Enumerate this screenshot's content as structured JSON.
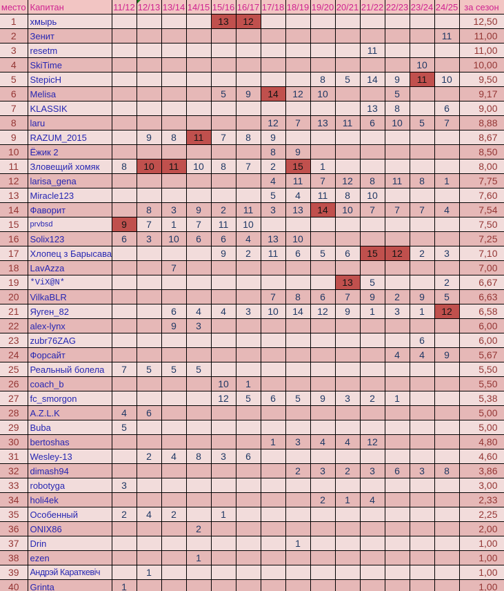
{
  "colors": {
    "header_bg": "#f2c5c3",
    "header_text": "#cf2490",
    "row_odd_bg": "#f2dcdb",
    "row_even_bg": "#e6b8b7",
    "highlight_cell_bg": "#c0504d",
    "highlight_cell_text": "#141414",
    "place_text": "#943634",
    "captain_text": "#2626b2",
    "value_text": "#1f3864",
    "avg_text": "#943634",
    "grid_border": "#000000",
    "note_marker": "#1e7e1e"
  },
  "table": {
    "columns": [
      "место",
      "Капитан",
      "11/12",
      "12/13",
      "13/14",
      "14/15",
      "15/16",
      "16/17",
      "17/18",
      "18/19",
      "19/20",
      "20/21",
      "21/22",
      "22/23",
      "23/24",
      "24/25",
      "за сезон"
    ],
    "note_marker_column": "12/13",
    "rows": [
      {
        "place": "1",
        "captain": "хмырь",
        "cells": [
          "",
          "",
          "",
          "",
          "13",
          "12",
          "",
          "",
          "",
          "",
          "",
          "",
          "",
          ""
        ],
        "hl": [
          4,
          5
        ],
        "avg": "12,50"
      },
      {
        "place": "2",
        "captain": "Зенит",
        "cells": [
          "",
          "",
          "",
          "",
          "",
          "",
          "",
          "",
          "",
          "",
          "",
          "",
          "",
          "11"
        ],
        "hl": [],
        "avg": "11,00"
      },
      {
        "place": "3",
        "captain": "resetm",
        "cells": [
          "",
          "",
          "",
          "",
          "",
          "",
          "",
          "",
          "",
          "",
          "11",
          "",
          "",
          ""
        ],
        "hl": [],
        "avg": "11,00"
      },
      {
        "place": "4",
        "captain": "SkiTime",
        "cells": [
          "",
          "",
          "",
          "",
          "",
          "",
          "",
          "",
          "",
          "",
          "",
          "",
          "10",
          ""
        ],
        "hl": [],
        "avg": "10,00"
      },
      {
        "place": "5",
        "captain": "StepicH",
        "cells": [
          "",
          "",
          "",
          "",
          "",
          "",
          "",
          "",
          "8",
          "5",
          "14",
          "9",
          "11",
          "10"
        ],
        "hl": [
          12
        ],
        "avg": "9,50"
      },
      {
        "place": "6",
        "captain": "Melisa",
        "cells": [
          "",
          "",
          "",
          "",
          "5",
          "9",
          "14",
          "12",
          "10",
          "",
          "",
          "5",
          "",
          ""
        ],
        "hl": [
          6
        ],
        "avg": "9,17"
      },
      {
        "place": "7",
        "captain": "KLASSIK",
        "cells": [
          "",
          "",
          "",
          "",
          "",
          "",
          "",
          "",
          "",
          "",
          "13",
          "8",
          "",
          "6"
        ],
        "hl": [],
        "avg": "9,00"
      },
      {
        "place": "8",
        "captain": "laru",
        "cells": [
          "",
          "",
          "",
          "",
          "",
          "",
          "12",
          "7",
          "13",
          "11",
          "6",
          "10",
          "5",
          "7"
        ],
        "hl": [],
        "avg": "8,88"
      },
      {
        "place": "9",
        "captain": "RAZUM_2015",
        "cells": [
          "",
          "9",
          "8",
          "11",
          "7",
          "8",
          "9",
          "",
          "",
          "",
          "",
          "",
          "",
          ""
        ],
        "hl": [
          3
        ],
        "avg": "8,67"
      },
      {
        "place": "10",
        "captain": "Ёжик 2",
        "cells": [
          "",
          "",
          "",
          "",
          "",
          "",
          "8",
          "9",
          "",
          "",
          "",
          "",
          "",
          ""
        ],
        "hl": [],
        "avg": "8,50"
      },
      {
        "place": "11",
        "captain": "Зловещий хомяк",
        "cells": [
          "8",
          "10",
          "11",
          "10",
          "8",
          "7",
          "2",
          "15",
          "1",
          "",
          "",
          "",
          "",
          ""
        ],
        "hl": [
          1,
          2,
          7
        ],
        "avg": "8,00"
      },
      {
        "place": "12",
        "captain": "larisa_gena",
        "cells": [
          "",
          "",
          "",
          "",
          "",
          "",
          "4",
          "11",
          "7",
          "12",
          "8",
          "11",
          "8",
          "1"
        ],
        "hl": [],
        "avg": "7,75"
      },
      {
        "place": "13",
        "captain": "Miracle123",
        "cells": [
          "",
          "",
          "",
          "",
          "",
          "",
          "5",
          "4",
          "11",
          "8",
          "10",
          "",
          "",
          ""
        ],
        "hl": [],
        "avg": "7,60"
      },
      {
        "place": "14",
        "captain": "Фаворит",
        "cells": [
          "",
          "8",
          "3",
          "9",
          "2",
          "11",
          "3",
          "13",
          "14",
          "10",
          "7",
          "7",
          "7",
          "4"
        ],
        "hl": [
          8
        ],
        "avg": "7,54"
      },
      {
        "place": "15",
        "captain": "prvbsd",
        "cells": [
          "9",
          "7",
          "1",
          "7",
          "11",
          "10",
          "",
          "",
          "",
          "",
          "",
          "",
          "",
          ""
        ],
        "hl": [
          0
        ],
        "avg": "7,50",
        "captain_style": "small"
      },
      {
        "place": "16",
        "captain": "Solix123",
        "cells": [
          "6",
          "3",
          "10",
          "6",
          "6",
          "4",
          "13",
          "10",
          "",
          "",
          "",
          "",
          "",
          ""
        ],
        "hl": [],
        "avg": "7,25"
      },
      {
        "place": "17",
        "captain": "Хлопец з Барысава",
        "cells": [
          "",
          "",
          "",
          "",
          "9",
          "2",
          "11",
          "6",
          "5",
          "6",
          "15",
          "12",
          "2",
          "3"
        ],
        "hl": [
          10,
          11
        ],
        "avg": "7,10"
      },
      {
        "place": "18",
        "captain": "LavAzza",
        "cells": [
          "",
          "",
          "7",
          "",
          "",
          "",
          "",
          "",
          "",
          "",
          "",
          "",
          "",
          ""
        ],
        "hl": [],
        "avg": "7,00"
      },
      {
        "place": "19",
        "captain": "*ViX@N*",
        "cells": [
          "",
          "",
          "",
          "",
          "",
          "",
          "",
          "",
          "",
          "13",
          "5",
          "",
          "",
          "2"
        ],
        "hl": [
          9
        ],
        "avg": "6,67",
        "captain_style": "mono"
      },
      {
        "place": "20",
        "captain": "VilkaBLR",
        "cells": [
          "",
          "",
          "",
          "",
          "",
          "",
          "7",
          "8",
          "6",
          "7",
          "9",
          "2",
          "9",
          "5"
        ],
        "hl": [],
        "avg": "6,63"
      },
      {
        "place": "21",
        "captain": "Яуген_82",
        "cells": [
          "",
          "",
          "6",
          "4",
          "4",
          "3",
          "10",
          "14",
          "12",
          "9",
          "1",
          "3",
          "1",
          "12"
        ],
        "hl": [
          13
        ],
        "avg": "6,58"
      },
      {
        "place": "22",
        "captain": "alex-lynx",
        "cells": [
          "",
          "",
          "9",
          "3",
          "",
          "",
          "",
          "",
          "",
          "",
          "",
          "",
          "",
          ""
        ],
        "hl": [],
        "avg": "6,00"
      },
      {
        "place": "23",
        "captain": "zubr76ZAG",
        "cells": [
          "",
          "",
          "",
          "",
          "",
          "",
          "",
          "",
          "",
          "",
          "",
          "",
          "6",
          ""
        ],
        "hl": [],
        "avg": "6,00"
      },
      {
        "place": "24",
        "captain": "Форсайт",
        "cells": [
          "",
          "",
          "",
          "",
          "",
          "",
          "",
          "",
          "",
          "",
          "",
          "4",
          "4",
          "9"
        ],
        "hl": [],
        "avg": "5,67"
      },
      {
        "place": "25",
        "captain": "Реальный болела",
        "cells": [
          "7",
          "5",
          "5",
          "5",
          "",
          "",
          "",
          "",
          "",
          "",
          "",
          "",
          "",
          ""
        ],
        "hl": [],
        "avg": "5,50"
      },
      {
        "place": "26",
        "captain": "coach_b",
        "cells": [
          "",
          "",
          "",
          "",
          "10",
          "1",
          "",
          "",
          "",
          "",
          "",
          "",
          "",
          ""
        ],
        "hl": [],
        "avg": "5,50"
      },
      {
        "place": "27",
        "captain": "fc_smorgon",
        "cells": [
          "",
          "",
          "",
          "",
          "12",
          "5",
          "6",
          "5",
          "9",
          "3",
          "2",
          "1",
          "",
          ""
        ],
        "hl": [],
        "avg": "5,38"
      },
      {
        "place": "28",
        "captain": "A.Z.L.K",
        "cells": [
          "4",
          "6",
          "",
          "",
          "",
          "",
          "",
          "",
          "",
          "",
          "",
          "",
          "",
          ""
        ],
        "hl": [],
        "avg": "5,00"
      },
      {
        "place": "29",
        "captain": "Buba",
        "cells": [
          "5",
          "",
          "",
          "",
          "",
          "",
          "",
          "",
          "",
          "",
          "",
          "",
          "",
          ""
        ],
        "hl": [],
        "avg": "5,00"
      },
      {
        "place": "30",
        "captain": "bertoshas",
        "cells": [
          "",
          "",
          "",
          "",
          "",
          "",
          "1",
          "3",
          "4",
          "4",
          "12",
          "",
          "",
          ""
        ],
        "hl": [],
        "avg": "4,80"
      },
      {
        "place": "31",
        "captain": "Wesley-13",
        "cells": [
          "",
          "2",
          "4",
          "8",
          "3",
          "6",
          "",
          "",
          "",
          "",
          "",
          "",
          "",
          ""
        ],
        "hl": [],
        "avg": "4,60"
      },
      {
        "place": "32",
        "captain": "dimash94",
        "cells": [
          "",
          "",
          "",
          "",
          "",
          "",
          "",
          "2",
          "3",
          "2",
          "3",
          "6",
          "3",
          "8"
        ],
        "hl": [],
        "avg": "3,86"
      },
      {
        "place": "33",
        "captain": "robotyga",
        "cells": [
          "3",
          "",
          "",
          "",
          "",
          "",
          "",
          "",
          "",
          "",
          "",
          "",
          "",
          ""
        ],
        "hl": [],
        "avg": "3,00"
      },
      {
        "place": "34",
        "captain": "holi4ek",
        "cells": [
          "",
          "",
          "",
          "",
          "",
          "",
          "",
          "",
          "2",
          "1",
          "4",
          "",
          "",
          ""
        ],
        "hl": [],
        "avg": "2,33"
      },
      {
        "place": "35",
        "captain": "Особенный",
        "cells": [
          "2",
          "4",
          "2",
          "",
          "1",
          "",
          "",
          "",
          "",
          "",
          "",
          "",
          "",
          ""
        ],
        "hl": [],
        "avg": "2,25"
      },
      {
        "place": "36",
        "captain": "ONIX86",
        "cells": [
          "",
          "",
          "",
          "2",
          "",
          "",
          "",
          "",
          "",
          "",
          "",
          "",
          "",
          ""
        ],
        "hl": [],
        "avg": "2,00"
      },
      {
        "place": "37",
        "captain": "Drin",
        "cells": [
          "",
          "",
          "",
          "",
          "",
          "",
          "",
          "1",
          "",
          "",
          "",
          "",
          "",
          ""
        ],
        "hl": [],
        "avg": "1,00"
      },
      {
        "place": "38",
        "captain": "ezen",
        "cells": [
          "",
          "",
          "",
          "1",
          "",
          "",
          "",
          "",
          "",
          "",
          "",
          "",
          "",
          ""
        ],
        "hl": [],
        "avg": "1,00"
      },
      {
        "place": "39",
        "captain": "Андрэй Караткевіч",
        "cells": [
          "",
          "1",
          "",
          "",
          "",
          "",
          "",
          "",
          "",
          "",
          "",
          "",
          "",
          ""
        ],
        "hl": [],
        "avg": "1,00",
        "captain_style": "condensed"
      },
      {
        "place": "40",
        "captain": "Grinta",
        "cells": [
          "1",
          "",
          "",
          "",
          "",
          "",
          "",
          "",
          "",
          "",
          "",
          "",
          "",
          ""
        ],
        "hl": [],
        "avg": "1,00"
      }
    ]
  }
}
